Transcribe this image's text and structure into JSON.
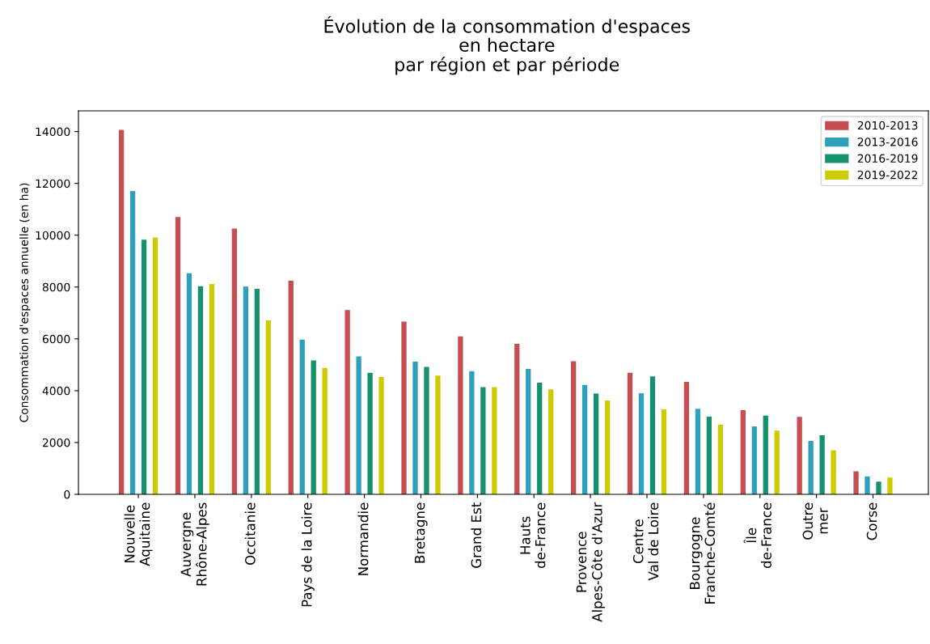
{
  "chart_data": {
    "type": "bar",
    "title": "Évolution de la consommation d'espaces\nen hectare\npar région et par période",
    "ylabel": "Consommation d'espaces annuelle (en ha)",
    "categories": [
      "Nouvelle\nAquitaine",
      "Auvergne\nRhône-Alpes",
      "Occitanie",
      "Pays de la Loire",
      "Normandie",
      "Bretagne",
      "Grand Est",
      "Hauts\nde-France",
      "Provence\nAlpes-Côte d'Azur",
      "Centre\nVal de Loire",
      "Bourgogne\nFranche-Comté",
      "Île\nde-France",
      "Outre\nmer",
      "Corse"
    ],
    "series": [
      {
        "name": "2010-2013",
        "color": "#c44e52",
        "values": [
          14070,
          10700,
          10260,
          8240,
          7110,
          6670,
          6100,
          5810,
          5140,
          4690,
          4340,
          3250,
          2990,
          890
        ]
      },
      {
        "name": "2013-2016",
        "color": "#2e9fbd",
        "values": [
          11700,
          8530,
          8020,
          5970,
          5320,
          5120,
          4750,
          4840,
          4220,
          3900,
          3300,
          2620,
          2060,
          690
        ]
      },
      {
        "name": "2016-2019",
        "color": "#16916e",
        "values": [
          9830,
          8030,
          7930,
          5170,
          4690,
          4920,
          4140,
          4310,
          3890,
          4550,
          3000,
          3040,
          2280,
          490
        ]
      },
      {
        "name": "2019-2022",
        "color": "#cccc00",
        "values": [
          9910,
          8120,
          6710,
          4880,
          4530,
          4580,
          4140,
          4050,
          3620,
          3280,
          2690,
          2460,
          1700,
          650
        ]
      }
    ],
    "ylim": [
      0,
      14800
    ],
    "yticks": [
      0,
      2000,
      4000,
      6000,
      8000,
      10000,
      12000,
      14000
    ],
    "grid": false,
    "legend": "top right"
  }
}
